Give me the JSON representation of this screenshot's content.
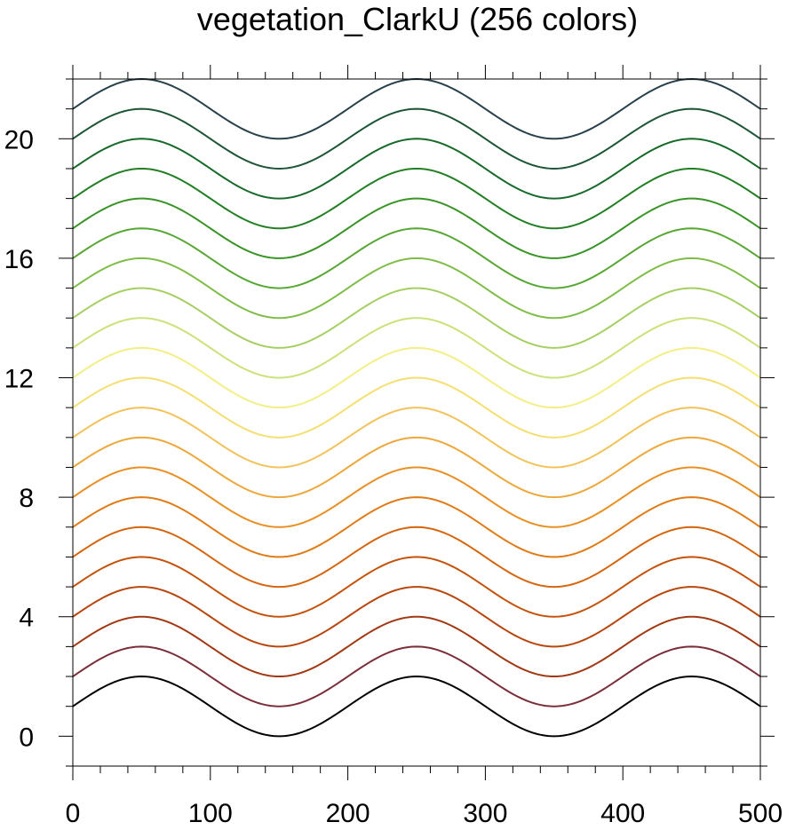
{
  "chart_data": {
    "type": "line",
    "title": "vegetation_ClarkU (256 colors)",
    "xlim": [
      0,
      500
    ],
    "ylim": [
      -1,
      22
    ],
    "xticks": [
      "0",
      "100",
      "200",
      "300",
      "400",
      "500"
    ],
    "yticks": [
      "0",
      "4",
      "8",
      "12",
      "16",
      "20"
    ],
    "xtick_values": [
      0,
      100,
      200,
      300,
      400,
      500
    ],
    "ytick_values": [
      0,
      4,
      8,
      12,
      16,
      20
    ],
    "grid": false,
    "curve": "y = offset + 1 + sin(2*pi*(x - 0)/200), sampled x = 0..500",
    "series": [
      {
        "offset": 0,
        "color": "#000000"
      },
      {
        "offset": 1,
        "color": "#7a2e3a"
      },
      {
        "offset": 2,
        "color": "#a13a14"
      },
      {
        "offset": 3,
        "color": "#b8470f"
      },
      {
        "offset": 4,
        "color": "#c4530c"
      },
      {
        "offset": 5,
        "color": "#d5660f"
      },
      {
        "offset": 6,
        "color": "#e07b16"
      },
      {
        "offset": 7,
        "color": "#e89024"
      },
      {
        "offset": 8,
        "color": "#eda83c"
      },
      {
        "offset": 9,
        "color": "#f2c35a"
      },
      {
        "offset": 10,
        "color": "#f5df73"
      },
      {
        "offset": 11,
        "color": "#f2ef86"
      },
      {
        "offset": 12,
        "color": "#cbe17a"
      },
      {
        "offset": 13,
        "color": "#a5cf62"
      },
      {
        "offset": 14,
        "color": "#7fbd48"
      },
      {
        "offset": 15,
        "color": "#58a734"
      },
      {
        "offset": 16,
        "color": "#3a9428"
      },
      {
        "offset": 17,
        "color": "#237f24"
      },
      {
        "offset": 18,
        "color": "#176a2a"
      },
      {
        "offset": 19,
        "color": "#1d5536"
      },
      {
        "offset": 20,
        "color": "#27404a"
      }
    ]
  }
}
